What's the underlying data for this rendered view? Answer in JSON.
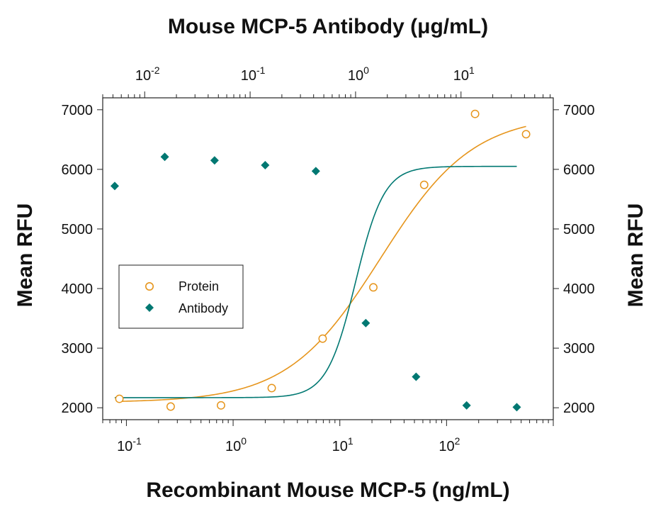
{
  "chart_data": {
    "type": "scatter",
    "top_title": "Mouse MCP-5 Antibody (μg/mL)",
    "xlabel": "Recombinant Mouse MCP-5 (ng/mL)",
    "ylabel_left": "Mean RFU",
    "ylabel_right": "Mean RFU",
    "x_scale": "log",
    "x_bottom_range": [
      0.06,
      1000
    ],
    "x_bottom_ticks": [
      {
        "base": "10",
        "exp": "-1",
        "value": 0.1
      },
      {
        "base": "10",
        "exp": "0",
        "value": 1
      },
      {
        "base": "10",
        "exp": "1",
        "value": 10
      },
      {
        "base": "10",
        "exp": "2",
        "value": 100
      }
    ],
    "x_top_range": [
      0.004,
      75
    ],
    "x_top_ticks": [
      {
        "base": "10",
        "exp": "-2",
        "value": 0.01
      },
      {
        "base": "10",
        "exp": "-1",
        "value": 0.1
      },
      {
        "base": "10",
        "exp": "0",
        "value": 1
      },
      {
        "base": "10",
        "exp": "1",
        "value": 10
      }
    ],
    "y_range": [
      1800,
      7200
    ],
    "y_ticks_left": [
      "2000",
      "3000",
      "4000",
      "5000",
      "6000",
      "7000"
    ],
    "y_ticks_right": [
      "2000",
      "3000",
      "4000",
      "5000",
      "6000",
      "7000"
    ],
    "legend_position": "center-left",
    "series": [
      {
        "name": "Protein",
        "axis": "bottom",
        "marker": "open-circle",
        "color": "#E6951C",
        "x": [
          0.086,
          0.26,
          0.77,
          2.3,
          6.9,
          20.6,
          61.7,
          185,
          556
        ],
        "y": [
          2150,
          2020,
          2040,
          2330,
          3160,
          4020,
          5740,
          6930,
          6590
        ],
        "fit": {
          "bottom": 2090,
          "top": 6920,
          "ec50": 24,
          "hill": 1.0
        }
      },
      {
        "name": "Antibody",
        "axis": "top",
        "marker": "filled-diamond",
        "color": "#007872",
        "x": [
          0.0052,
          0.0155,
          0.046,
          0.139,
          0.42,
          1.25,
          3.75,
          11.3,
          33.8
        ],
        "y": [
          5720,
          6210,
          6150,
          6070,
          5970,
          3420,
          2520,
          2040,
          2010
        ],
        "fit": {
          "bottom": 2170,
          "top": 6050,
          "ec50": 1.0,
          "hill": 3.2
        }
      }
    ]
  }
}
